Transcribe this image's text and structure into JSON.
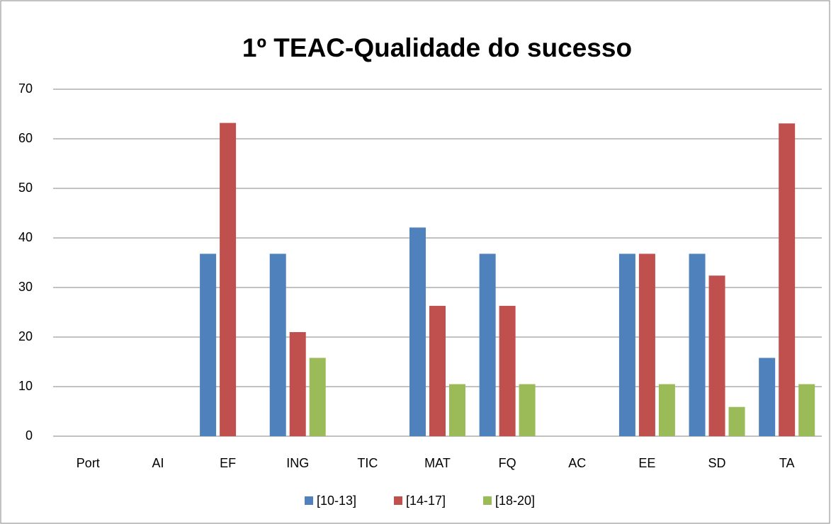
{
  "chart_data": {
    "type": "bar",
    "title": "1º TEAC-Qualidade do sucesso",
    "categories": [
      "Port",
      "AI",
      "EF",
      "ING",
      "TIC",
      "MAT",
      "FQ",
      "AC",
      "EE",
      "SD",
      "TA"
    ],
    "series": [
      {
        "name": "[10-13]",
        "color": "#4f81bd",
        "values": [
          0,
          0,
          36.8,
          36.8,
          0,
          42.1,
          36.8,
          0,
          36.8,
          36.8,
          15.8
        ]
      },
      {
        "name": "[14-17]",
        "color": "#c0504d",
        "values": [
          0,
          0,
          63.2,
          21.0,
          0,
          26.3,
          26.3,
          0,
          36.8,
          32.4,
          63.1
        ]
      },
      {
        "name": "[18-20]",
        "color": "#9bbb59",
        "values": [
          0,
          0,
          0,
          15.8,
          0,
          10.5,
          10.5,
          0,
          10.5,
          5.9,
          10.5
        ]
      }
    ],
    "ylim": [
      0,
      70
    ],
    "yticks": [
      0,
      10,
      20,
      30,
      40,
      50,
      60,
      70
    ],
    "grid": true,
    "legend": "bottom"
  }
}
